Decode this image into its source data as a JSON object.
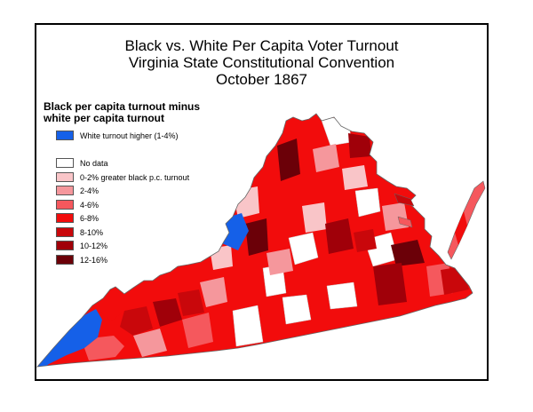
{
  "title": {
    "line1": "Black vs. White Per Capita Voter Turnout",
    "line2": "Virginia State Constitutional Convention",
    "line3": "October 1867"
  },
  "legend": {
    "heading_line1": "Black per capita turnout minus",
    "heading_line2": "white per capita turnout",
    "white_higher": {
      "label": "White turnout higher (1-4%)",
      "color": "#1560e8"
    },
    "classes": [
      {
        "label": "No data",
        "color": "#ffffff"
      },
      {
        "label": "0-2% greater black p.c. turnout",
        "color": "#f9c5c8"
      },
      {
        "label": "2-4%",
        "color": "#f5979c"
      },
      {
        "label": "4-6%",
        "color": "#f5585d"
      },
      {
        "label": "6-8%",
        "color": "#f20c0c"
      },
      {
        "label": "8-10%",
        "color": "#c9070b"
      },
      {
        "label": "10-12%",
        "color": "#a00009"
      },
      {
        "label": "12-16%",
        "color": "#6b0008"
      }
    ]
  }
}
